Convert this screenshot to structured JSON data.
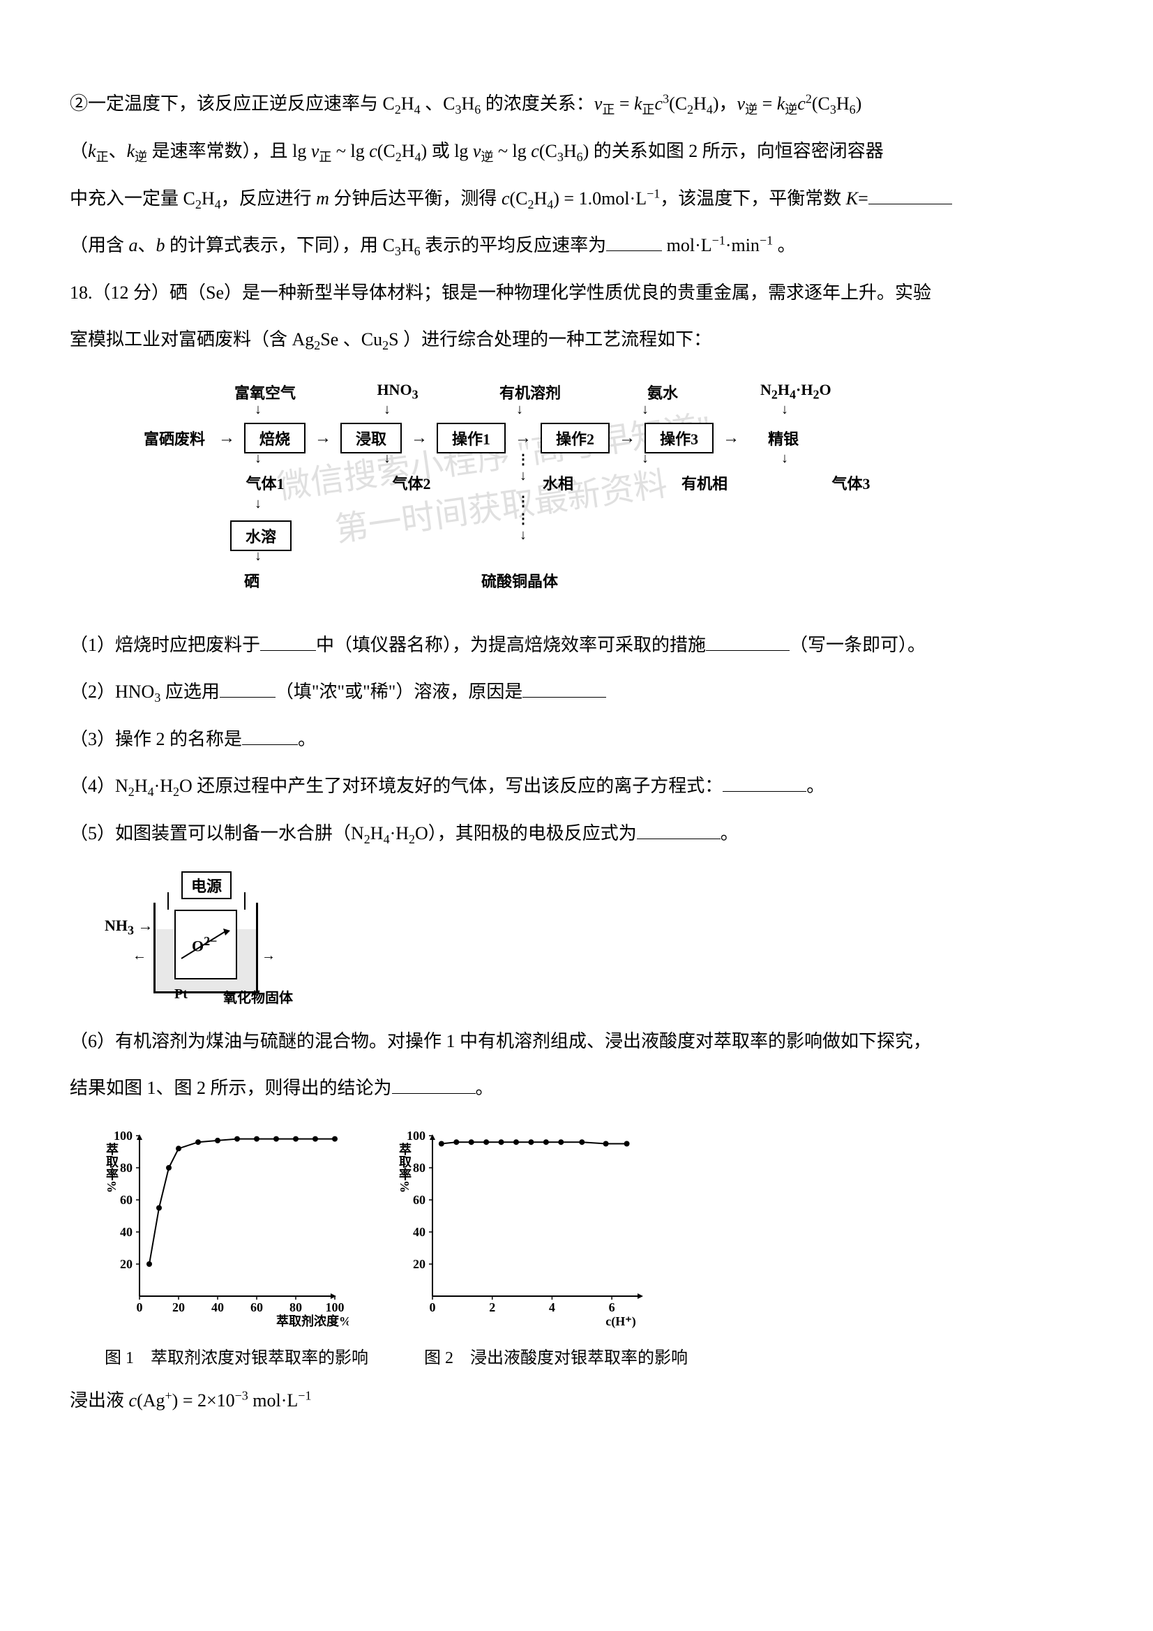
{
  "text": {
    "p1": "②一定温度下，该反应正逆反应速率与 C₂H₄、C₃H₆ 的浓度关系：v正 = k正c³(C₂H₄)，v逆 = k逆c²(C₃H₆)",
    "p2": "（k正、k逆 是速率常数），且 lg v正 ~ lg c(C₂H₄) 或 lg v逆 ~ lg c(C₃H₆) 的关系如图 2 所示，向恒容密闭容器",
    "p3": "中充入一定量 C₂H₄，反应进行 m 分钟后达平衡，测得 c(C₂H₄) = 1.0mol·L⁻¹，该温度下，平衡常数 K=",
    "p4": "（用含 a、b 的计算式表示，下同），用 C₃H₆ 表示的平均反应速率为",
    "p4_unit": " mol·L⁻¹·min⁻¹ 。",
    "q18_intro1": "18.（12 分）硒（Se）是一种新型半导体材料；银是一种物理化学性质优良的贵重金属，需求逐年上升。实验",
    "q18_intro2": "室模拟工业对富硒废料（含 Ag₂Se 、Cu₂S ）进行综合处理的一种工艺流程如下：",
    "q18_1": "（1）焙烧时应把废料于",
    "q18_1b": "中（填仪器名称），为提高焙烧效率可采取的措施",
    "q18_1c": "（写一条即可）。",
    "q18_2": "（2）HNO₃ 应选用",
    "q18_2b": "（填\"浓\"或\"稀\"）溶液，原因是",
    "q18_3": "（3）操作 2 的名称是",
    "q18_3b": "。",
    "q18_4": "（4）N₂H₄·H₂O 还原过程中产生了对环境友好的气体，写出该反应的离子方程式：",
    "q18_4b": "。",
    "q18_5": "（5）如图装置可以制备一水合肼（N₂H₄·H₂O），其阳极的电极反应式为",
    "q18_5b": "。",
    "q18_6": "（6）有机溶剂为煤油与硫醚的混合物。对操作 1 中有机溶剂组成、浸出液酸度对萃取率的影响做如下探究，",
    "q18_6b": "结果如图 1、图 2 所示，则得出的结论为",
    "q18_6c": "。",
    "chart1_caption": "图 1　萃取剂浓度对银萃取率的影响",
    "chart2_caption": "图 2　浸出液酸度对银萃取率的影响",
    "final": "浸出液 c(Ag⁺) = 2×10⁻³ mol·L⁻¹"
  },
  "flowchart": {
    "inputs": [
      "富氧空气",
      "HNO₃",
      "有机溶剂",
      "氨水",
      "N₂H₄·H₂O"
    ],
    "start_label": "富硒废料",
    "boxes": [
      "焙烧",
      "浸取",
      "操作1",
      "操作2",
      "操作3"
    ],
    "end_label": "精银",
    "outputs": [
      "气体1",
      "气体2",
      "水相",
      "有机相",
      "气体3"
    ],
    "box_water": "水溶",
    "se_label": "硒",
    "cuso4_label": "硫酸铜晶体",
    "colors": {
      "box_border": "#000000",
      "text": "#000000"
    }
  },
  "electrolysis": {
    "power": "电源",
    "nh3": "NH₃",
    "o2": "O²⁻",
    "pt": "Pt",
    "oxide": "氧化物固体"
  },
  "chart1": {
    "type": "line",
    "xlabel": "萃取剂浓度%",
    "ylabel": "萃取率%",
    "xlim": [
      0,
      100
    ],
    "ylim": [
      0,
      100
    ],
    "xticks": [
      0,
      20,
      40,
      60,
      80,
      100
    ],
    "yticks": [
      20,
      40,
      60,
      80,
      100
    ],
    "data_x": [
      5,
      10,
      15,
      20,
      30,
      40,
      50,
      60,
      70,
      80,
      90,
      100
    ],
    "data_y": [
      20,
      55,
      80,
      92,
      96,
      97,
      98,
      98,
      98,
      98,
      98,
      98
    ],
    "line_color": "#000000",
    "marker": "circle",
    "marker_size": 4,
    "background": "#ffffff",
    "axis_color": "#000000",
    "font_size": 18
  },
  "chart2": {
    "type": "line",
    "xlabel": "c(H⁺)",
    "ylabel": "萃取率%",
    "xlim": [
      0,
      7
    ],
    "ylim": [
      0,
      100
    ],
    "xticks": [
      0,
      2,
      4,
      6
    ],
    "yticks": [
      20,
      40,
      60,
      80,
      100
    ],
    "data_x": [
      0.3,
      0.8,
      1.3,
      1.8,
      2.3,
      2.8,
      3.3,
      3.8,
      4.3,
      5.0,
      5.8,
      6.5
    ],
    "data_y": [
      95,
      96,
      96,
      96,
      96,
      96,
      96,
      96,
      96,
      96,
      95,
      95
    ],
    "line_color": "#000000",
    "marker": "circle",
    "marker_size": 4,
    "background": "#ffffff",
    "axis_color": "#000000",
    "font_size": 18
  },
  "watermark": {
    "line1": "微信搜索小程序 \"高考早知道\"",
    "line2": "第一时间获取最新资料"
  }
}
